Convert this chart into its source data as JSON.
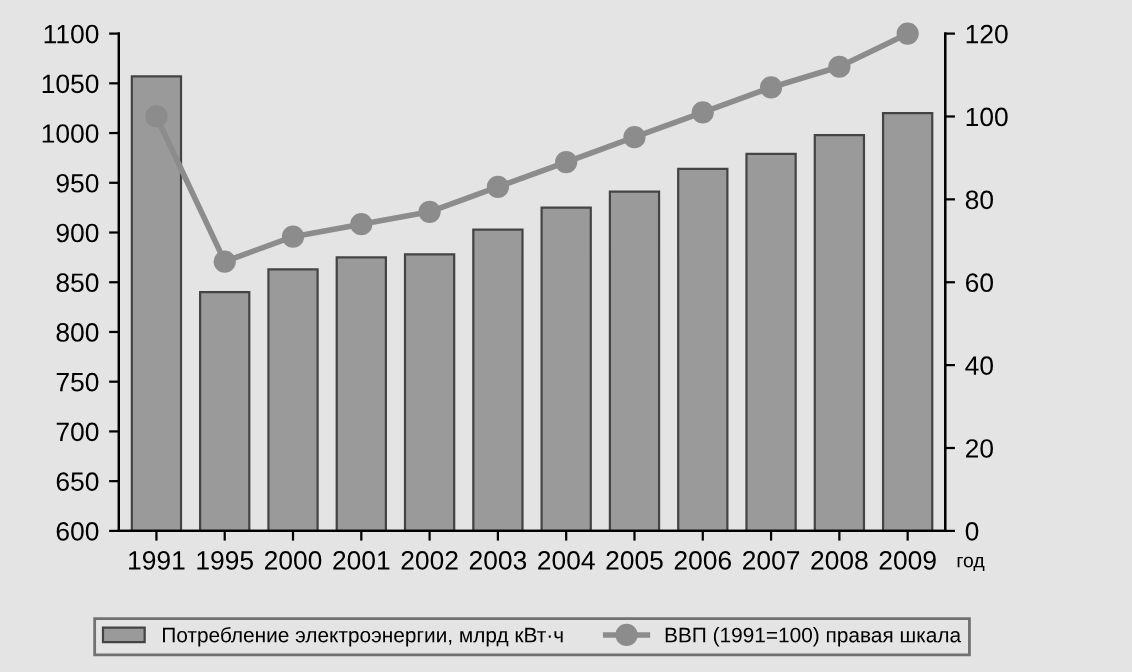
{
  "chart_data": {
    "type": "bar",
    "categories": [
      "1991",
      "1995",
      "2000",
      "2001",
      "2002",
      "2003",
      "2004",
      "2005",
      "2006",
      "2007",
      "2008",
      "2009"
    ],
    "xlabel": "год",
    "series": [
      {
        "name": "Потребление электроэнергии, млрд кВт·ч",
        "color": "#9a9a9a",
        "values": [
          1057,
          840,
          863,
          875,
          878,
          903,
          925,
          941,
          964,
          979,
          998,
          1020
        ]
      },
      {
        "name": "ВВП (1991=100) правая шкала",
        "type": "line",
        "axis": "y2",
        "color": "#8c8c8c",
        "values": [
          100,
          65,
          71,
          74,
          77,
          83,
          89,
          95,
          101,
          107,
          112,
          120
        ]
      }
    ],
    "ylim": [
      600,
      1100
    ],
    "yticks": [
      600,
      650,
      700,
      750,
      800,
      850,
      900,
      950,
      1000,
      1050,
      1100
    ],
    "y2lim": [
      0,
      120
    ],
    "y2ticks": [
      0,
      20,
      40,
      60,
      80,
      100,
      120
    ],
    "marker": "circle",
    "legend": "bottom",
    "grid": false
  }
}
